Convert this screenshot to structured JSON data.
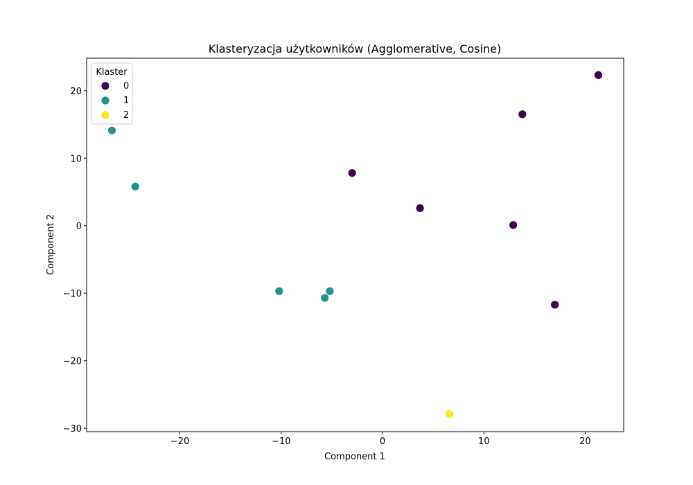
{
  "chart_data": {
    "type": "scatter",
    "title": "Klasteryzacja użytkowników (Agglomerative, Cosine)",
    "xlabel": "Component 1",
    "ylabel": "Component 2",
    "xlim": [
      -29.2,
      23.8
    ],
    "ylim": [
      -30.5,
      24.8
    ],
    "xticks": [
      -20,
      -10,
      0,
      10,
      20
    ],
    "yticks": [
      -30,
      -20,
      -10,
      0,
      10,
      20
    ],
    "xtick_labels": [
      "−20",
      "−10",
      "0",
      "10",
      "20"
    ],
    "ytick_labels": [
      "−30",
      "−20",
      "−10",
      "0",
      "10",
      "20"
    ],
    "grid": false,
    "legend": {
      "title": "Klaster",
      "placement": "upper-left",
      "entries": [
        {
          "label": "0",
          "color": "#440154"
        },
        {
          "label": "1",
          "color": "#21918c"
        },
        {
          "label": "2",
          "color": "#fde725"
        }
      ]
    },
    "series": [
      {
        "name": "0",
        "color": "#440154",
        "points": [
          {
            "x": 21.3,
            "y": 22.3
          },
          {
            "x": 13.8,
            "y": 16.5
          },
          {
            "x": -3.0,
            "y": 7.8
          },
          {
            "x": 3.7,
            "y": 2.6
          },
          {
            "x": 12.9,
            "y": 0.1
          },
          {
            "x": 17.0,
            "y": -11.7
          }
        ]
      },
      {
        "name": "1",
        "color": "#21918c",
        "points": [
          {
            "x": -26.7,
            "y": 14.1
          },
          {
            "x": -24.4,
            "y": 5.8
          },
          {
            "x": -10.2,
            "y": -9.7
          },
          {
            "x": -5.7,
            "y": -10.7
          },
          {
            "x": -5.2,
            "y": -9.7
          }
        ]
      },
      {
        "name": "2",
        "color": "#fde725",
        "points": [
          {
            "x": 6.6,
            "y": -27.9
          }
        ]
      }
    ]
  }
}
